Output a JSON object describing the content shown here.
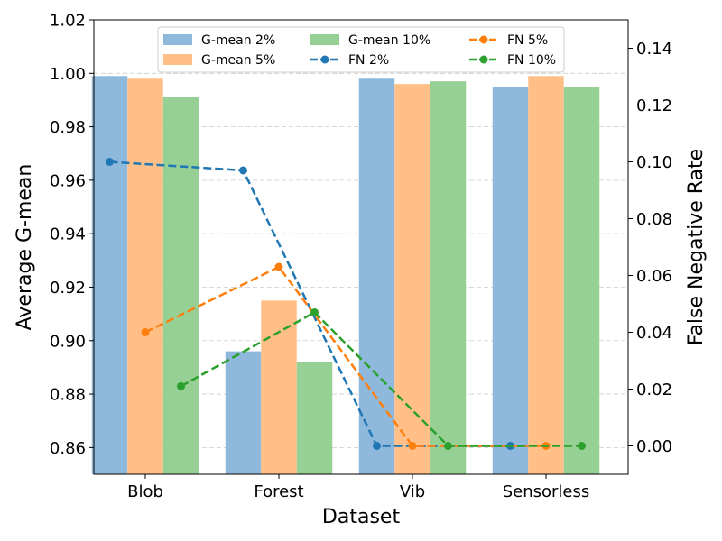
{
  "chart_data": {
    "type": "bar+line",
    "xlabel": "Dataset",
    "ylabel_left": "Average G-mean",
    "ylabel_right": "False Negative Rate",
    "categories": [
      "Blob",
      "Forest",
      "Vib",
      "Sensorless"
    ],
    "ylim_left": [
      0.85,
      1.02
    ],
    "ylim_right": [
      -0.01,
      0.15
    ],
    "yticks_left": [
      "0.86",
      "0.88",
      "0.90",
      "0.92",
      "0.94",
      "0.96",
      "0.98",
      "1.00",
      "1.02"
    ],
    "yticks_right": [
      "0.00",
      "0.02",
      "0.04",
      "0.06",
      "0.08",
      "0.10",
      "0.12",
      "0.14"
    ],
    "grid": "horizontal dashed",
    "legend_position": "top-center",
    "bar_series": [
      {
        "name": "G-mean 2%",
        "color": "#8fb9dc",
        "values": [
          0.999,
          0.896,
          0.998,
          0.995
        ]
      },
      {
        "name": "G-mean 5%",
        "color": "#ffbf86",
        "values": [
          0.998,
          0.915,
          0.996,
          0.999
        ]
      },
      {
        "name": "G-mean 10%",
        "color": "#96d095",
        "values": [
          0.991,
          0.892,
          0.997,
          0.995
        ]
      }
    ],
    "line_series": [
      {
        "name": "FN 2%",
        "color": "#1f77b4",
        "values": [
          0.1,
          0.097,
          0.0,
          0.0
        ]
      },
      {
        "name": "FN 5%",
        "color": "#ff7f0e",
        "values": [
          0.04,
          0.063,
          0.0,
          0.0
        ]
      },
      {
        "name": "FN 10%",
        "color": "#2ca02c",
        "values": [
          0.021,
          0.047,
          0.0,
          0.0
        ]
      }
    ],
    "legend_order": [
      "G-mean 2%",
      "G-mean 5%",
      "G-mean 10%",
      "FN 2%",
      "FN 5%",
      "FN 10%"
    ]
  }
}
